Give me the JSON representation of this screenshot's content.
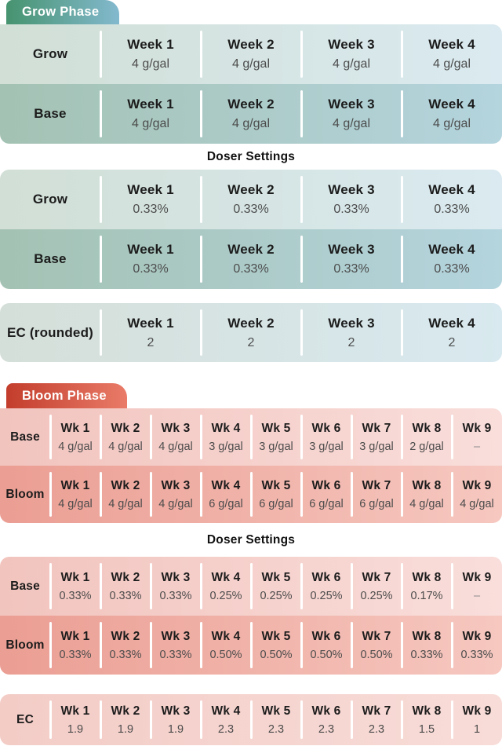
{
  "grow_phase": {
    "badge": "Grow Phase",
    "feeding_rows": [
      {
        "label": "Grow",
        "cells": [
          {
            "week": "Week 1",
            "value": "4 g/gal"
          },
          {
            "week": "Week 2",
            "value": "4 g/gal"
          },
          {
            "week": "Week 3",
            "value": "4 g/gal"
          },
          {
            "week": "Week 4",
            "value": "4 g/gal"
          }
        ]
      },
      {
        "label": "Base",
        "cells": [
          {
            "week": "Week 1",
            "value": "4 g/gal"
          },
          {
            "week": "Week 2",
            "value": "4 g/gal"
          },
          {
            "week": "Week 3",
            "value": "4 g/gal"
          },
          {
            "week": "Week 4",
            "value": "4 g/gal"
          }
        ]
      }
    ],
    "doser_heading": "Doser Settings",
    "doser_rows": [
      {
        "label": "Grow",
        "cells": [
          {
            "week": "Week 1",
            "value": "0.33%"
          },
          {
            "week": "Week 2",
            "value": "0.33%"
          },
          {
            "week": "Week 3",
            "value": "0.33%"
          },
          {
            "week": "Week 4",
            "value": "0.33%"
          }
        ]
      },
      {
        "label": "Base",
        "cells": [
          {
            "week": "Week 1",
            "value": "0.33%"
          },
          {
            "week": "Week 2",
            "value": "0.33%"
          },
          {
            "week": "Week 3",
            "value": "0.33%"
          },
          {
            "week": "Week 4",
            "value": "0.33%"
          }
        ]
      }
    ],
    "ec_rows": [
      {
        "label": "EC (rounded)",
        "cells": [
          {
            "week": "Week 1",
            "value": "2"
          },
          {
            "week": "Week 2",
            "value": "2"
          },
          {
            "week": "Week 3",
            "value": "2"
          },
          {
            "week": "Week 4",
            "value": "2"
          }
        ]
      }
    ]
  },
  "bloom_phase": {
    "badge": "Bloom Phase",
    "feeding_rows": [
      {
        "label": "Base",
        "cells": [
          {
            "week": "Wk 1",
            "value": "4 g/gal"
          },
          {
            "week": "Wk 2",
            "value": "4 g/gal"
          },
          {
            "week": "Wk 3",
            "value": "4 g/gal"
          },
          {
            "week": "Wk 4",
            "value": "3 g/gal"
          },
          {
            "week": "Wk 5",
            "value": "3 g/gal"
          },
          {
            "week": "Wk 6",
            "value": "3 g/gal"
          },
          {
            "week": "Wk 7",
            "value": "3 g/gal"
          },
          {
            "week": "Wk 8",
            "value": "2 g/gal"
          },
          {
            "week": "Wk 9",
            "value": "–"
          }
        ]
      },
      {
        "label": "Bloom",
        "cells": [
          {
            "week": "Wk 1",
            "value": "4 g/gal"
          },
          {
            "week": "Wk 2",
            "value": "4 g/gal"
          },
          {
            "week": "Wk 3",
            "value": "4 g/gal"
          },
          {
            "week": "Wk 4",
            "value": "6 g/gal"
          },
          {
            "week": "Wk 5",
            "value": "6 g/gal"
          },
          {
            "week": "Wk 6",
            "value": "6 g/gal"
          },
          {
            "week": "Wk 7",
            "value": "6 g/gal"
          },
          {
            "week": "Wk 8",
            "value": "4 g/gal"
          },
          {
            "week": "Wk 9",
            "value": "4 g/gal"
          }
        ]
      }
    ],
    "doser_heading": "Doser Settings",
    "doser_rows": [
      {
        "label": "Base",
        "cells": [
          {
            "week": "Wk 1",
            "value": "0.33%"
          },
          {
            "week": "Wk 2",
            "value": "0.33%"
          },
          {
            "week": "Wk 3",
            "value": "0.33%"
          },
          {
            "week": "Wk 4",
            "value": "0.25%"
          },
          {
            "week": "Wk 5",
            "value": "0.25%"
          },
          {
            "week": "Wk 6",
            "value": "0.25%"
          },
          {
            "week": "Wk 7",
            "value": "0.25%"
          },
          {
            "week": "Wk 8",
            "value": "0.17%"
          },
          {
            "week": "Wk 9",
            "value": "–"
          }
        ]
      },
      {
        "label": "Bloom",
        "cells": [
          {
            "week": "Wk 1",
            "value": "0.33%"
          },
          {
            "week": "Wk 2",
            "value": "0.33%"
          },
          {
            "week": "Wk 3",
            "value": "0.33%"
          },
          {
            "week": "Wk 4",
            "value": "0.50%"
          },
          {
            "week": "Wk 5",
            "value": "0.50%"
          },
          {
            "week": "Wk 6",
            "value": "0.50%"
          },
          {
            "week": "Wk 7",
            "value": "0.50%"
          },
          {
            "week": "Wk 8",
            "value": "0.33%"
          },
          {
            "week": "Wk 9",
            "value": "0.33%"
          }
        ]
      }
    ],
    "ec_rows": [
      {
        "label": "EC",
        "cells": [
          {
            "week": "Wk 1",
            "value": "1.9"
          },
          {
            "week": "Wk 2",
            "value": "1.9"
          },
          {
            "week": "Wk 3",
            "value": "1.9"
          },
          {
            "week": "Wk 4",
            "value": "2.3"
          },
          {
            "week": "Wk 5",
            "value": "2.3"
          },
          {
            "week": "Wk 6",
            "value": "2.3"
          },
          {
            "week": "Wk 7",
            "value": "2.3"
          },
          {
            "week": "Wk 8",
            "value": "1.5"
          },
          {
            "week": "Wk 9",
            "value": "1"
          }
        ]
      }
    ]
  },
  "colors": {
    "grow": {
      "badge_gradient": [
        "#46936f",
        "#83b9ce"
      ],
      "row_light_gradient": [
        "#d1dfd6",
        "#daeaf0"
      ],
      "row_dark_gradient": [
        "#a4c2b3",
        "#b4d4de"
      ],
      "ec_gradient": [
        "#d5dfd9",
        "#d8e9ef"
      ]
    },
    "bloom": {
      "badge_gradient": [
        "#c33d2c",
        "#e97b68"
      ],
      "row_light_gradient": [
        "#f2c4be",
        "#f9dedb"
      ],
      "row_dark_gradient": [
        "#eb9e93",
        "#f6c8c0"
      ],
      "ec_gradient": [
        "#f3ccc6",
        "#f8dcd8"
      ]
    },
    "badge_text": "#ffffff",
    "heading_text": "#111111",
    "header_text": "#1c1c1c",
    "value_text": "#4c4c4c"
  },
  "chart_data": [
    {
      "type": "table",
      "title": "Grow Phase",
      "columns": [
        "",
        "Week 1",
        "Week 2",
        "Week 3",
        "Week 4"
      ],
      "rows": [
        [
          "Grow (g/gal)",
          4,
          4,
          4,
          4
        ],
        [
          "Base (g/gal)",
          4,
          4,
          4,
          4
        ],
        [
          "Grow doser (%)",
          0.33,
          0.33,
          0.33,
          0.33
        ],
        [
          "Base doser (%)",
          0.33,
          0.33,
          0.33,
          0.33
        ],
        [
          "EC (rounded)",
          2,
          2,
          2,
          2
        ]
      ]
    },
    {
      "type": "table",
      "title": "Bloom Phase",
      "columns": [
        "",
        "Wk 1",
        "Wk 2",
        "Wk 3",
        "Wk 4",
        "Wk 5",
        "Wk 6",
        "Wk 7",
        "Wk 8",
        "Wk 9"
      ],
      "rows": [
        [
          "Base (g/gal)",
          4,
          4,
          4,
          3,
          3,
          3,
          3,
          2,
          null
        ],
        [
          "Bloom (g/gal)",
          4,
          4,
          4,
          6,
          6,
          6,
          6,
          4,
          4
        ],
        [
          "Base doser (%)",
          0.33,
          0.33,
          0.33,
          0.25,
          0.25,
          0.25,
          0.25,
          0.17,
          null
        ],
        [
          "Bloom doser (%)",
          0.33,
          0.33,
          0.33,
          0.5,
          0.5,
          0.5,
          0.5,
          0.33,
          0.33
        ],
        [
          "EC",
          1.9,
          1.9,
          1.9,
          2.3,
          2.3,
          2.3,
          2.3,
          1.5,
          1
        ]
      ]
    }
  ]
}
